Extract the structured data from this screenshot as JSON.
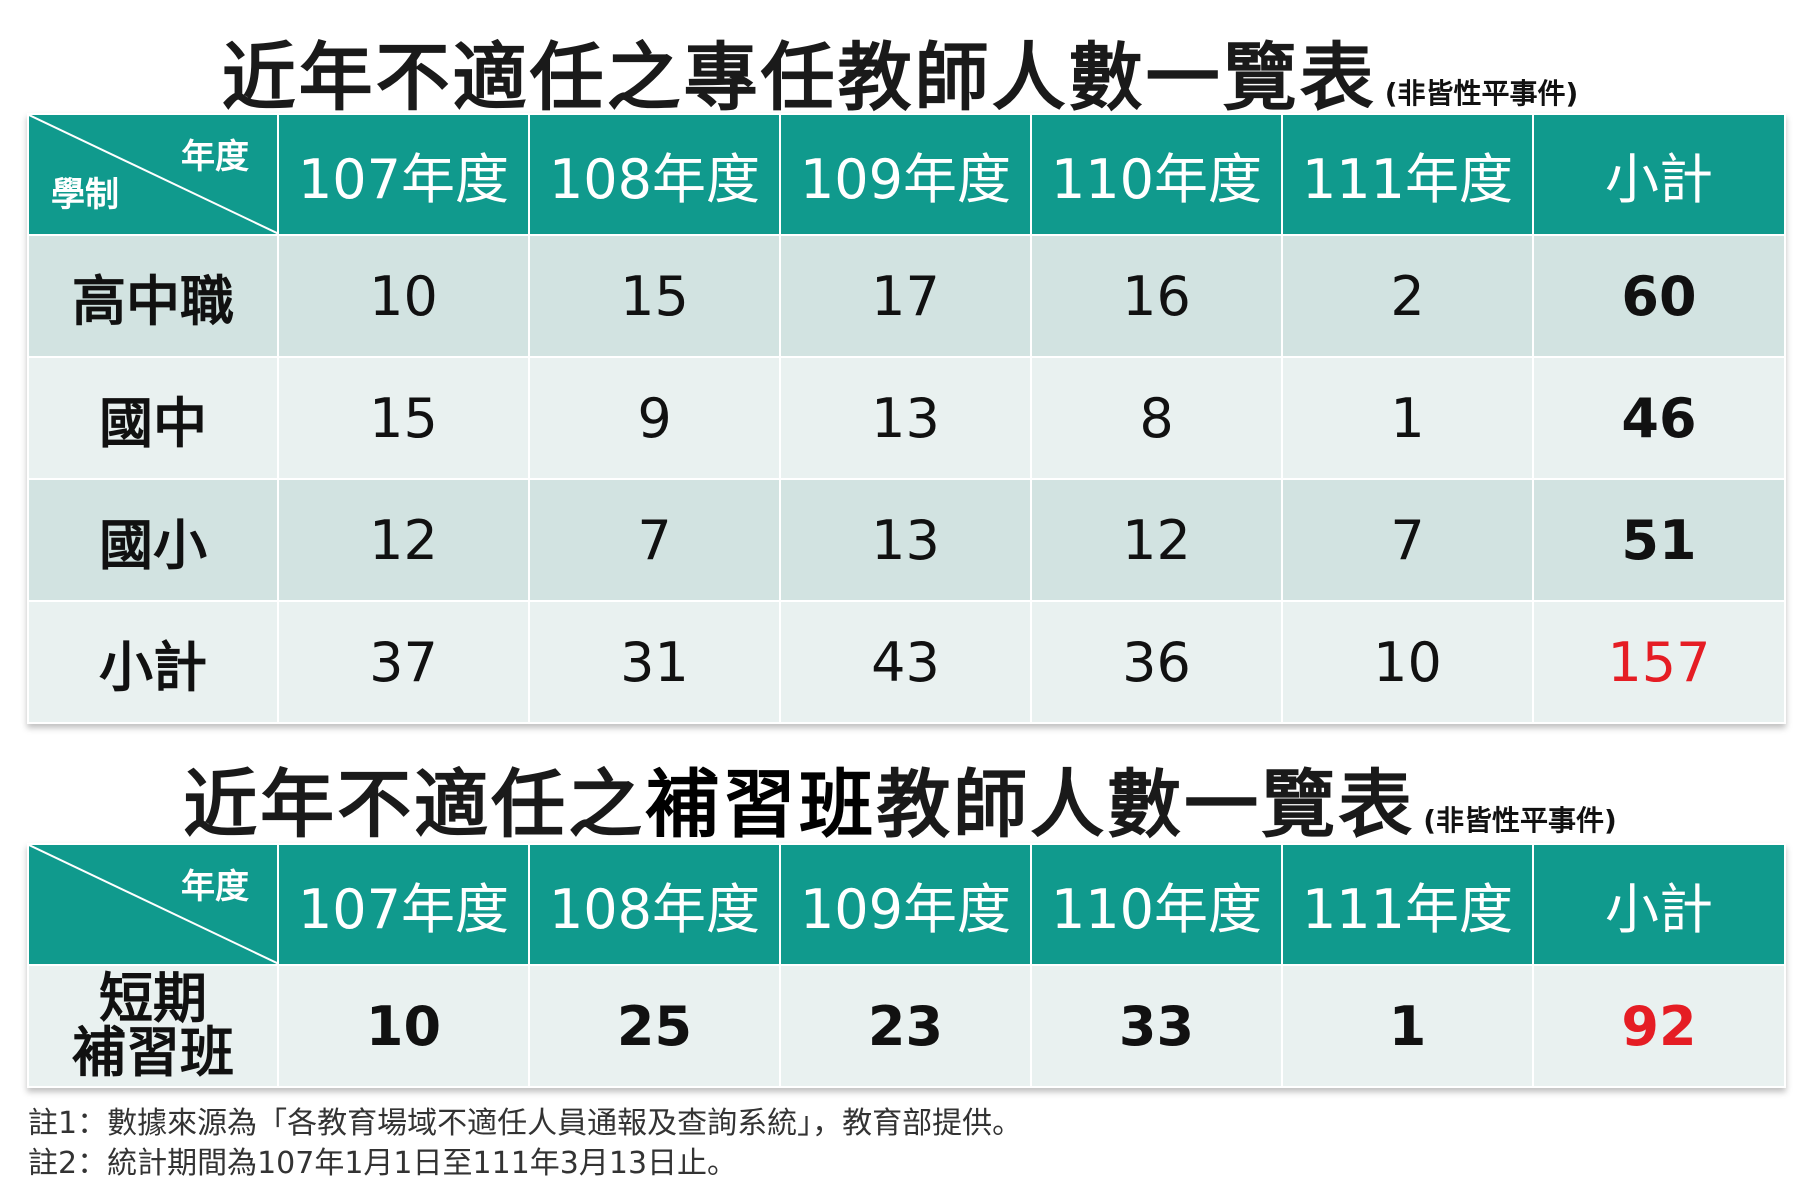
{
  "table1": {
    "title": "近年不適任之專任教師人數一覽表",
    "subtitle": "(非皆性平事件)",
    "corner_year": "年度",
    "corner_system": "學制",
    "headers": [
      "107年度",
      "108年度",
      "109年度",
      "110年度",
      "111年度",
      "小計"
    ],
    "rows": [
      {
        "label": "高中職",
        "values": [
          "10",
          "15",
          "17",
          "16",
          "2"
        ],
        "subtotal": "60"
      },
      {
        "label": "國中",
        "values": [
          "15",
          "9",
          "13",
          "8",
          "1"
        ],
        "subtotal": "46"
      },
      {
        "label": "國小",
        "values": [
          "12",
          "7",
          "13",
          "12",
          "7"
        ],
        "subtotal": "51"
      },
      {
        "label": "小計",
        "values": [
          "37",
          "31",
          "43",
          "36",
          "10"
        ],
        "subtotal": "157"
      }
    ]
  },
  "table2": {
    "title_prefix": "近年不適任之",
    "title_highlight": "補習班",
    "title_suffix": "教師人數一覽表",
    "subtitle": "(非皆性平事件)",
    "corner_year": "年度",
    "headers": [
      "107年度",
      "108年度",
      "109年度",
      "110年度",
      "111年度",
      "小計"
    ],
    "row": {
      "label_line1": "短期",
      "label_line2": "補習班",
      "values": [
        "10",
        "25",
        "23",
        "33",
        "1"
      ],
      "subtotal": "92"
    }
  },
  "notes": {
    "note1": "註1：數據來源為「各教育場域不適任人員通報及查詢系統」，教育部提供。",
    "note2": "註2：統計期間為107年1月1日至111年3月13日止。"
  },
  "colors": {
    "header_bg": "#109a8d",
    "row_dark": "#d2e3e1",
    "row_light": "#e9f1f0",
    "total_red": "#e51d24"
  }
}
